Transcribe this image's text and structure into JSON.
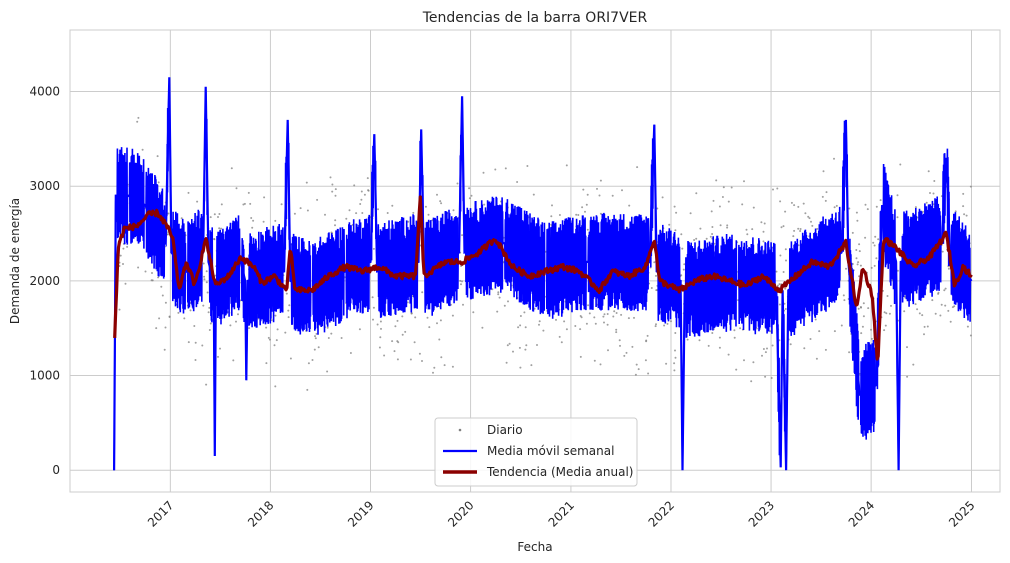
{
  "chart_data": {
    "type": "line",
    "title": "Tendencias de la barra ORI7VER",
    "xlabel": "Fecha",
    "ylabel": "Demanda de energía",
    "xlim": [
      "2016-01-01",
      "2025-04-15"
    ],
    "ylim": [
      -230,
      4650
    ],
    "grid": true,
    "legend_placement": "bottom-center",
    "x_ticks": [
      "2017",
      "2018",
      "2019",
      "2020",
      "2021",
      "2022",
      "2023",
      "2024",
      "2025"
    ],
    "y_ticks": [
      0,
      1000,
      2000,
      3000,
      4000
    ],
    "series": [
      {
        "name": "Diario",
        "style": "scatter",
        "color": "#808080",
        "description_points": [
          [
            "2016-06-15",
            2600
          ],
          [
            "2016-09-01",
            2800
          ],
          [
            "2016-12-01",
            2300
          ],
          [
            "2017-03-01",
            2100
          ],
          [
            "2017-06-01",
            2000
          ],
          [
            "2017-09-01",
            2100
          ],
          [
            "2017-12-01",
            1900
          ],
          [
            "2018-03-01",
            2000
          ],
          [
            "2018-06-01",
            1950
          ],
          [
            "2018-09-01",
            2150
          ],
          [
            "2018-12-01",
            2100
          ],
          [
            "2019-03-01",
            2100
          ],
          [
            "2019-06-01",
            2000
          ],
          [
            "2019-09-01",
            2100
          ],
          [
            "2019-12-01",
            2200
          ],
          [
            "2020-03-01",
            2300
          ],
          [
            "2020-06-01",
            2100
          ],
          [
            "2020-09-01",
            2050
          ],
          [
            "2020-12-01",
            2150
          ],
          [
            "2021-03-01",
            2100
          ],
          [
            "2021-06-01",
            2050
          ],
          [
            "2021-09-01",
            2100
          ],
          [
            "2021-12-01",
            2050
          ],
          [
            "2022-03-01",
            1950
          ],
          [
            "2022-06-01",
            2000
          ],
          [
            "2022-09-01",
            2050
          ],
          [
            "2022-12-01",
            1950
          ],
          [
            "2023-03-01",
            2050
          ],
          [
            "2023-06-01",
            2100
          ],
          [
            "2023-09-01",
            2300
          ],
          [
            "2023-12-01",
            1800
          ],
          [
            "2024-03-01",
            2200
          ],
          [
            "2024-06-01",
            2100
          ],
          [
            "2024-09-01",
            2300
          ],
          [
            "2024-12-01",
            2100
          ]
        ]
      },
      {
        "name": "Media móvil semanal",
        "style": "line",
        "color": "#0000ff",
        "points": [
          [
            "2016-06-10",
            0
          ],
          [
            "2016-06-16",
            2900
          ],
          [
            "2016-08-01",
            2900
          ],
          [
            "2016-10-01",
            2800
          ],
          [
            "2016-12-15",
            2400
          ],
          [
            "2016-12-28",
            4150
          ],
          [
            "2017-01-05",
            2300
          ],
          [
            "2017-03-01",
            2100
          ],
          [
            "2017-05-01",
            2300
          ],
          [
            "2017-05-10",
            4050
          ],
          [
            "2017-05-20",
            2200
          ],
          [
            "2017-06-08",
            2000
          ],
          [
            "2017-06-12",
            150
          ],
          [
            "2017-06-16",
            2000
          ],
          [
            "2017-09-15",
            2200
          ],
          [
            "2017-10-01",
            2000
          ],
          [
            "2017-10-05",
            950
          ],
          [
            "2017-10-10",
            2000
          ],
          [
            "2018-02-20",
            2100
          ],
          [
            "2018-03-05",
            3700
          ],
          [
            "2018-03-15",
            2000
          ],
          [
            "2018-06-01",
            1900
          ],
          [
            "2018-10-01",
            2100
          ],
          [
            "2019-01-01",
            2200
          ],
          [
            "2019-01-15",
            3550
          ],
          [
            "2019-01-25",
            2100
          ],
          [
            "2019-06-25",
            2200
          ],
          [
            "2019-07-05",
            3600
          ],
          [
            "2019-07-15",
            2100
          ],
          [
            "2019-11-20",
            2300
          ],
          [
            "2019-12-01",
            3950
          ],
          [
            "2019-12-10",
            2300
          ],
          [
            "2020-05-01",
            2400
          ],
          [
            "2020-10-01",
            2100
          ],
          [
            "2021-03-01",
            2200
          ],
          [
            "2021-10-15",
            2200
          ],
          [
            "2021-11-01",
            3650
          ],
          [
            "2021-11-10",
            2100
          ],
          [
            "2022-02-05",
            2000
          ],
          [
            "2022-02-12",
            0
          ],
          [
            "2022-02-20",
            1900
          ],
          [
            "2022-09-01",
            2000
          ],
          [
            "2023-01-20",
            1900
          ],
          [
            "2023-02-05",
            30
          ],
          [
            "2023-02-12",
            1900
          ],
          [
            "2023-02-25",
            0
          ],
          [
            "2023-03-05",
            1900
          ],
          [
            "2023-09-15",
            2300
          ],
          [
            "2023-10-01",
            3700
          ],
          [
            "2023-10-10",
            2200
          ],
          [
            "2023-11-20",
            800
          ],
          [
            "2024-01-20",
            900
          ],
          [
            "2024-02-10",
            2800
          ],
          [
            "2024-04-01",
            2200
          ],
          [
            "2024-04-10",
            0
          ],
          [
            "2024-04-18",
            2200
          ],
          [
            "2024-09-15",
            2400
          ],
          [
            "2024-10-01",
            3300
          ],
          [
            "2024-10-15",
            2300
          ],
          [
            "2025-01-01",
            2000
          ]
        ]
      },
      {
        "name": "Tendencia (Media anual)",
        "style": "line",
        "color": "#8b0000",
        "points": [
          [
            "2016-06-12",
            1400
          ],
          [
            "2016-06-25",
            2350
          ],
          [
            "2016-07-15",
            2550
          ],
          [
            "2016-09-01",
            2580
          ],
          [
            "2016-10-15",
            2700
          ],
          [
            "2016-11-15",
            2720
          ],
          [
            "2016-12-15",
            2600
          ],
          [
            "2017-01-10",
            2450
          ],
          [
            "2017-02-01",
            1900
          ],
          [
            "2017-03-01",
            2200
          ],
          [
            "2017-04-01",
            1950
          ],
          [
            "2017-05-10",
            2450
          ],
          [
            "2017-06-15",
            1950
          ],
          [
            "2017-08-01",
            2050
          ],
          [
            "2017-09-15",
            2250
          ],
          [
            "2017-11-01",
            2150
          ],
          [
            "2017-12-01",
            1980
          ],
          [
            "2018-01-15",
            2050
          ],
          [
            "2018-03-01",
            1900
          ],
          [
            "2018-03-15",
            2350
          ],
          [
            "2018-04-01",
            1900
          ],
          [
            "2018-06-01",
            1900
          ],
          [
            "2018-08-01",
            2050
          ],
          [
            "2018-10-01",
            2150
          ],
          [
            "2018-12-01",
            2100
          ],
          [
            "2019-02-01",
            2150
          ],
          [
            "2019-04-01",
            2050
          ],
          [
            "2019-06-15",
            2050
          ],
          [
            "2019-07-01",
            2900
          ],
          [
            "2019-07-15",
            2050
          ],
          [
            "2019-10-01",
            2200
          ],
          [
            "2019-12-01",
            2200
          ],
          [
            "2020-02-01",
            2300
          ],
          [
            "2020-04-01",
            2450
          ],
          [
            "2020-06-01",
            2150
          ],
          [
            "2020-08-01",
            2050
          ],
          [
            "2020-10-01",
            2100
          ],
          [
            "2020-12-01",
            2150
          ],
          [
            "2021-02-01",
            2100
          ],
          [
            "2021-04-15",
            1900
          ],
          [
            "2021-06-01",
            2100
          ],
          [
            "2021-08-01",
            2050
          ],
          [
            "2021-10-01",
            2150
          ],
          [
            "2021-11-01",
            2450
          ],
          [
            "2021-11-20",
            2000
          ],
          [
            "2022-02-01",
            1900
          ],
          [
            "2022-04-01",
            2000
          ],
          [
            "2022-06-01",
            2050
          ],
          [
            "2022-08-01",
            2000
          ],
          [
            "2022-10-01",
            1950
          ],
          [
            "2022-12-01",
            2050
          ],
          [
            "2023-02-01",
            1900
          ],
          [
            "2023-04-01",
            2050
          ],
          [
            "2023-06-01",
            2200
          ],
          [
            "2023-08-01",
            2150
          ],
          [
            "2023-10-01",
            2400
          ],
          [
            "2023-11-10",
            1700
          ],
          [
            "2023-12-01",
            2150
          ],
          [
            "2024-01-05",
            1850
          ],
          [
            "2024-01-25",
            1100
          ],
          [
            "2024-02-15",
            2450
          ],
          [
            "2024-04-01",
            2350
          ],
          [
            "2024-06-01",
            2150
          ],
          [
            "2024-08-01",
            2250
          ],
          [
            "2024-10-01",
            2500
          ],
          [
            "2024-11-01",
            1950
          ],
          [
            "2024-12-01",
            2150
          ],
          [
            "2025-01-01",
            2050
          ]
        ]
      }
    ]
  }
}
